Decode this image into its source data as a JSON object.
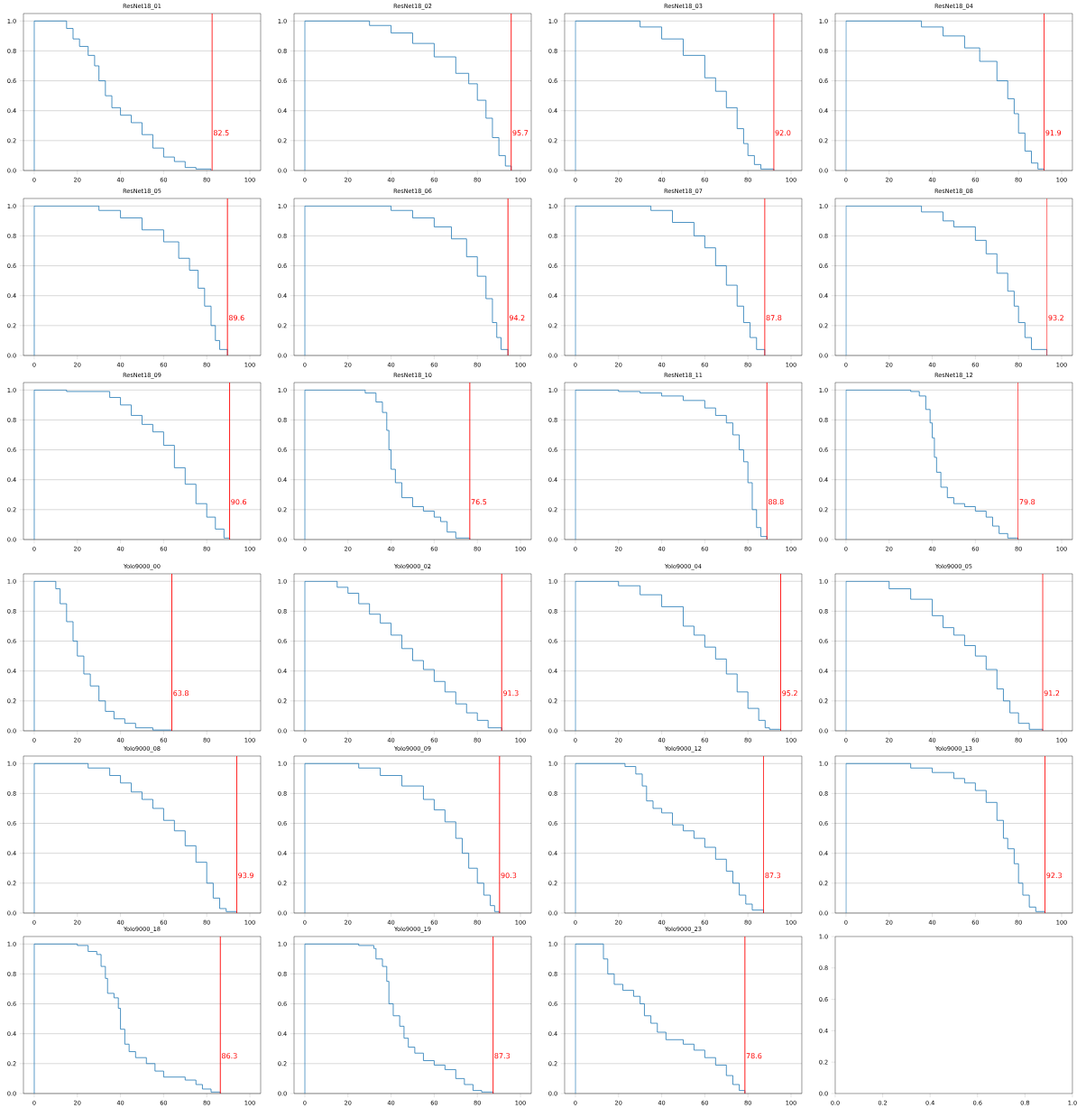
{
  "chart_data": [
    {
      "type": "step",
      "title": "ResNet18_01",
      "xlim": [
        -5,
        105
      ],
      "ylim": [
        0,
        1.05
      ],
      "xticks": [
        0,
        20,
        40,
        60,
        80,
        100
      ],
      "yticks": [
        {
          "value": 0,
          "label": "0.0"
        },
        {
          "value": 0.2,
          "label": "0.2"
        },
        {
          "value": 0.4,
          "label": "0.4"
        },
        {
          "value": 0.6,
          "label": "0.6"
        },
        {
          "value": 0.8,
          "label": "0.8"
        },
        {
          "value": 1,
          "label": "1.0"
        }
      ],
      "grid": "y",
      "series": [
        {
          "color": "#1f77b4",
          "x": [
            0,
            0,
            13,
            15,
            18,
            21,
            25,
            28,
            30,
            33,
            36,
            40,
            45,
            50,
            55,
            60,
            65,
            70,
            75,
            82
          ],
          "values": [
            0,
            1,
            1,
            0.95,
            0.88,
            0.83,
            0.77,
            0.7,
            0.6,
            0.5,
            0.42,
            0.37,
            0.32,
            0.24,
            0.15,
            0.09,
            0.06,
            0.02,
            0.01,
            0
          ]
        }
      ],
      "ref_lines": [
        {
          "axis": "x",
          "value": 82.5,
          "label": "82.5",
          "color": "#ff0000"
        }
      ]
    },
    {
      "type": "step",
      "title": "ResNet18_02",
      "xlim": [
        -5,
        105
      ],
      "ylim": [
        0,
        1.05
      ],
      "xticks": [
        0,
        20,
        40,
        60,
        80,
        100
      ],
      "yticks": [
        {
          "value": 0,
          "label": "0.0"
        },
        {
          "value": 0.2,
          "label": "0.2"
        },
        {
          "value": 0.4,
          "label": "0.4"
        },
        {
          "value": 0.6,
          "label": "0.6"
        },
        {
          "value": 0.8,
          "label": "0.8"
        },
        {
          "value": 1,
          "label": "1.0"
        }
      ],
      "grid": "y",
      "series": [
        {
          "color": "#1f77b4",
          "x": [
            0,
            0,
            22,
            30,
            40,
            50,
            60,
            70,
            76,
            80,
            84,
            87,
            90,
            93,
            95.7
          ],
          "values": [
            0,
            1,
            1,
            0.97,
            0.92,
            0.85,
            0.76,
            0.65,
            0.58,
            0.47,
            0.35,
            0.22,
            0.1,
            0.03,
            0
          ]
        }
      ],
      "ref_lines": [
        {
          "axis": "x",
          "value": 95.7,
          "label": "95.7",
          "color": "#ff0000"
        }
      ]
    },
    {
      "type": "step",
      "title": "ResNet18_03",
      "xlim": [
        -5,
        105
      ],
      "ylim": [
        0,
        1.05
      ],
      "xticks": [
        0,
        20,
        40,
        60,
        80,
        100
      ],
      "yticks": [
        {
          "value": 0,
          "label": "0.0"
        },
        {
          "value": 0.2,
          "label": "0.2"
        },
        {
          "value": 0.4,
          "label": "0.4"
        },
        {
          "value": 0.6,
          "label": "0.6"
        },
        {
          "value": 0.8,
          "label": "0.8"
        },
        {
          "value": 1,
          "label": "1.0"
        }
      ],
      "grid": "y",
      "series": [
        {
          "color": "#1f77b4",
          "x": [
            0,
            0,
            20,
            30,
            40,
            50,
            60,
            65,
            70,
            75,
            78,
            80,
            83,
            86,
            92
          ],
          "values": [
            0,
            1,
            1,
            0.96,
            0.88,
            0.77,
            0.62,
            0.53,
            0.42,
            0.28,
            0.18,
            0.1,
            0.04,
            0.01,
            0
          ]
        }
      ],
      "ref_lines": [
        {
          "axis": "x",
          "value": 92.0,
          "label": "92.0",
          "color": "#ff0000"
        }
      ]
    },
    {
      "type": "step",
      "title": "ResNet18_04",
      "xlim": [
        -5,
        105
      ],
      "ylim": [
        0,
        1.05
      ],
      "xticks": [
        0,
        20,
        40,
        60,
        80,
        100
      ],
      "yticks": [
        {
          "value": 0,
          "label": "0.0"
        },
        {
          "value": 0.2,
          "label": "0.2"
        },
        {
          "value": 0.4,
          "label": "0.4"
        },
        {
          "value": 0.6,
          "label": "0.6"
        },
        {
          "value": 0.8,
          "label": "0.8"
        },
        {
          "value": 1,
          "label": "1.0"
        }
      ],
      "grid": "y",
      "series": [
        {
          "color": "#1f77b4",
          "x": [
            0,
            0,
            25,
            35,
            45,
            55,
            62,
            70,
            75,
            78,
            80,
            83,
            86,
            89,
            91.9
          ],
          "values": [
            0,
            1,
            1,
            0.96,
            0.9,
            0.82,
            0.73,
            0.6,
            0.48,
            0.38,
            0.25,
            0.13,
            0.05,
            0.01,
            0
          ]
        }
      ],
      "ref_lines": [
        {
          "axis": "x",
          "value": 91.9,
          "label": "91.9",
          "color": "#ff0000"
        }
      ]
    },
    {
      "type": "step",
      "title": "ResNet18_05",
      "xlim": [
        -5,
        105
      ],
      "ylim": [
        0,
        1.05
      ],
      "xticks": [
        0,
        20,
        40,
        60,
        80,
        100
      ],
      "yticks": [
        {
          "value": 0,
          "label": "0.0"
        },
        {
          "value": 0.2,
          "label": "0.2"
        },
        {
          "value": 0.4,
          "label": "0.4"
        },
        {
          "value": 0.6,
          "label": "0.6"
        },
        {
          "value": 0.8,
          "label": "0.8"
        },
        {
          "value": 1,
          "label": "1.0"
        }
      ],
      "grid": "y",
      "series": [
        {
          "color": "#1f77b4",
          "x": [
            0,
            0,
            22,
            30,
            40,
            50,
            60,
            67,
            72,
            76,
            79,
            82,
            84,
            86,
            89.6
          ],
          "values": [
            0,
            1,
            1,
            0.97,
            0.92,
            0.84,
            0.76,
            0.65,
            0.57,
            0.45,
            0.33,
            0.2,
            0.1,
            0.04,
            0
          ]
        }
      ],
      "ref_lines": [
        {
          "axis": "x",
          "value": 89.6,
          "label": "89.6",
          "color": "#ff0000"
        }
      ]
    },
    {
      "type": "step",
      "title": "ResNet18_06",
      "xlim": [
        -5,
        105
      ],
      "ylim": [
        0,
        1.05
      ],
      "xticks": [
        0,
        20,
        40,
        60,
        80,
        100
      ],
      "yticks": [
        {
          "value": 0,
          "label": "0.0"
        },
        {
          "value": 0.2,
          "label": "0.2"
        },
        {
          "value": 0.4,
          "label": "0.4"
        },
        {
          "value": 0.6,
          "label": "0.6"
        },
        {
          "value": 0.8,
          "label": "0.8"
        },
        {
          "value": 1,
          "label": "1.0"
        }
      ],
      "grid": "y",
      "series": [
        {
          "color": "#1f77b4",
          "x": [
            0,
            0,
            25,
            40,
            50,
            60,
            68,
            75,
            80,
            84,
            87,
            89,
            91,
            94.2
          ],
          "values": [
            0,
            1,
            1,
            0.97,
            0.92,
            0.86,
            0.78,
            0.66,
            0.53,
            0.38,
            0.22,
            0.12,
            0.04,
            0
          ]
        }
      ],
      "ref_lines": [
        {
          "axis": "x",
          "value": 94.2,
          "label": "94.2",
          "color": "#ff0000"
        }
      ]
    },
    {
      "type": "step",
      "title": "ResNet18_07",
      "xlim": [
        -5,
        105
      ],
      "ylim": [
        0,
        1.05
      ],
      "xticks": [
        0,
        20,
        40,
        60,
        80,
        100
      ],
      "yticks": [
        {
          "value": 0,
          "label": "0.0"
        },
        {
          "value": 0.2,
          "label": "0.2"
        },
        {
          "value": 0.4,
          "label": "0.4"
        },
        {
          "value": 0.6,
          "label": "0.6"
        },
        {
          "value": 0.8,
          "label": "0.8"
        },
        {
          "value": 1,
          "label": "1.0"
        }
      ],
      "grid": "y",
      "series": [
        {
          "color": "#1f77b4",
          "x": [
            0,
            0,
            25,
            35,
            45,
            55,
            60,
            65,
            70,
            75,
            78,
            81,
            84,
            87.8
          ],
          "values": [
            0,
            1,
            1,
            0.97,
            0.89,
            0.8,
            0.72,
            0.6,
            0.47,
            0.33,
            0.22,
            0.12,
            0.04,
            0
          ]
        }
      ],
      "ref_lines": [
        {
          "axis": "x",
          "value": 87.8,
          "label": "87.8",
          "color": "#ff0000"
        }
      ]
    },
    {
      "type": "step",
      "title": "ResNet18_08",
      "xlim": [
        -5,
        105
      ],
      "ylim": [
        0,
        1.05
      ],
      "xticks": [
        0,
        20,
        40,
        60,
        80,
        100
      ],
      "yticks": [
        {
          "value": 0,
          "label": "0.0"
        },
        {
          "value": 0.2,
          "label": "0.2"
        },
        {
          "value": 0.4,
          "label": "0.4"
        },
        {
          "value": 0.6,
          "label": "0.6"
        },
        {
          "value": 0.8,
          "label": "0.8"
        },
        {
          "value": 1,
          "label": "1.0"
        }
      ],
      "grid": "y",
      "series": [
        {
          "color": "#1f77b4",
          "x": [
            0,
            0,
            20,
            35,
            45,
            50,
            60,
            65,
            70,
            75,
            78,
            80,
            83,
            86,
            93.2
          ],
          "values": [
            0,
            1,
            1,
            0.96,
            0.9,
            0.86,
            0.77,
            0.68,
            0.55,
            0.43,
            0.33,
            0.22,
            0.12,
            0.04,
            0
          ]
        }
      ],
      "ref_lines": [
        {
          "axis": "x",
          "value": 93.2,
          "label": "93.2",
          "color": "#ff0000"
        }
      ]
    },
    {
      "type": "step",
      "title": "ResNet18_09",
      "xlim": [
        -5,
        105
      ],
      "ylim": [
        0,
        1.05
      ],
      "xticks": [
        0,
        20,
        40,
        60,
        80,
        100
      ],
      "yticks": [
        {
          "value": 0,
          "label": "0.0"
        },
        {
          "value": 0.2,
          "label": "0.2"
        },
        {
          "value": 0.4,
          "label": "0.4"
        },
        {
          "value": 0.6,
          "label": "0.6"
        },
        {
          "value": 0.8,
          "label": "0.8"
        },
        {
          "value": 1,
          "label": "1.0"
        }
      ],
      "grid": "y",
      "series": [
        {
          "color": "#1f77b4",
          "x": [
            0,
            0,
            12,
            15,
            35,
            40,
            45,
            50,
            55,
            60,
            65,
            70,
            75,
            80,
            84,
            88,
            90.6
          ],
          "values": [
            0,
            1,
            1,
            0.99,
            0.95,
            0.9,
            0.83,
            0.77,
            0.72,
            0.63,
            0.48,
            0.37,
            0.24,
            0.15,
            0.07,
            0.01,
            0
          ]
        }
      ],
      "ref_lines": [
        {
          "axis": "x",
          "value": 90.6,
          "label": "90.6",
          "color": "#ff0000"
        }
      ]
    },
    {
      "type": "step",
      "title": "ResNet18_10",
      "xlim": [
        -5,
        105
      ],
      "ylim": [
        0,
        1.05
      ],
      "xticks": [
        0,
        20,
        40,
        60,
        80,
        100
      ],
      "yticks": [
        {
          "value": 0,
          "label": "0.0"
        },
        {
          "value": 0.2,
          "label": "0.2"
        },
        {
          "value": 0.4,
          "label": "0.4"
        },
        {
          "value": 0.6,
          "label": "0.6"
        },
        {
          "value": 0.8,
          "label": "0.8"
        },
        {
          "value": 1,
          "label": "1.0"
        }
      ],
      "grid": "y",
      "series": [
        {
          "color": "#1f77b4",
          "x": [
            0,
            0,
            20,
            28,
            33,
            36,
            38,
            39,
            40,
            42,
            45,
            50,
            55,
            60,
            63,
            66,
            70,
            76.5
          ],
          "values": [
            0,
            1,
            1,
            0.98,
            0.92,
            0.85,
            0.73,
            0.6,
            0.47,
            0.38,
            0.28,
            0.22,
            0.19,
            0.15,
            0.12,
            0.05,
            0.01,
            0
          ]
        }
      ],
      "ref_lines": [
        {
          "axis": "x",
          "value": 76.5,
          "label": "76.5",
          "color": "#ff0000"
        }
      ]
    },
    {
      "type": "step",
      "title": "ResNet18_11",
      "xlim": [
        -5,
        105
      ],
      "ylim": [
        0,
        1.05
      ],
      "xticks": [
        0,
        20,
        40,
        60,
        80,
        100
      ],
      "yticks": [
        {
          "value": 0,
          "label": "0.0"
        },
        {
          "value": 0.2,
          "label": "0.2"
        },
        {
          "value": 0.4,
          "label": "0.4"
        },
        {
          "value": 0.6,
          "label": "0.6"
        },
        {
          "value": 0.8,
          "label": "0.8"
        },
        {
          "value": 1,
          "label": "1.0"
        }
      ],
      "grid": "y",
      "series": [
        {
          "color": "#1f77b4",
          "x": [
            0,
            0,
            10,
            20,
            30,
            40,
            50,
            60,
            65,
            70,
            73,
            76,
            78,
            80,
            82,
            84,
            86,
            88.8
          ],
          "values": [
            0,
            1,
            1,
            0.99,
            0.98,
            0.96,
            0.93,
            0.88,
            0.83,
            0.78,
            0.7,
            0.6,
            0.52,
            0.38,
            0.2,
            0.08,
            0.02,
            0
          ]
        }
      ],
      "ref_lines": [
        {
          "axis": "x",
          "value": 88.8,
          "label": "88.8",
          "color": "#ff0000"
        }
      ]
    },
    {
      "type": "step",
      "title": "ResNet18_12",
      "xlim": [
        -5,
        105
      ],
      "ylim": [
        0,
        1.05
      ],
      "xticks": [
        0,
        20,
        40,
        60,
        80,
        100
      ],
      "yticks": [
        {
          "value": 0,
          "label": "0.0"
        },
        {
          "value": 0.2,
          "label": "0.2"
        },
        {
          "value": 0.4,
          "label": "0.4"
        },
        {
          "value": 0.6,
          "label": "0.6"
        },
        {
          "value": 0.8,
          "label": "0.8"
        },
        {
          "value": 1,
          "label": "1.0"
        }
      ],
      "grid": "y",
      "series": [
        {
          "color": "#1f77b4",
          "x": [
            0,
            0,
            10,
            30,
            34,
            37,
            39,
            40,
            41,
            42,
            44,
            47,
            50,
            55,
            60,
            65,
            68,
            71,
            75,
            79.8
          ],
          "values": [
            0,
            1,
            1,
            0.99,
            0.96,
            0.87,
            0.78,
            0.68,
            0.55,
            0.45,
            0.35,
            0.28,
            0.24,
            0.22,
            0.19,
            0.15,
            0.09,
            0.04,
            0.01,
            0
          ]
        }
      ],
      "ref_lines": [
        {
          "axis": "x",
          "value": 79.8,
          "label": "79.8",
          "color": "#ff0000"
        }
      ]
    },
    {
      "type": "step",
      "title": "Yolo9000_00",
      "xlim": [
        -5,
        105
      ],
      "ylim": [
        0,
        1.05
      ],
      "xticks": [
        0,
        20,
        40,
        60,
        80,
        100
      ],
      "yticks": [
        {
          "value": 0,
          "label": "0.0"
        },
        {
          "value": 0.2,
          "label": "0.2"
        },
        {
          "value": 0.4,
          "label": "0.4"
        },
        {
          "value": 0.6,
          "label": "0.6"
        },
        {
          "value": 0.8,
          "label": "0.8"
        },
        {
          "value": 1,
          "label": "1.0"
        }
      ],
      "grid": "y",
      "series": [
        {
          "color": "#1f77b4",
          "x": [
            0,
            0,
            8,
            10,
            12,
            15,
            18,
            20,
            23,
            26,
            30,
            33,
            37,
            42,
            47,
            55,
            63.8
          ],
          "values": [
            0,
            1,
            1,
            0.95,
            0.85,
            0.73,
            0.6,
            0.5,
            0.38,
            0.3,
            0.2,
            0.13,
            0.08,
            0.05,
            0.02,
            0.005,
            0
          ]
        }
      ],
      "ref_lines": [
        {
          "axis": "x",
          "value": 63.8,
          "label": "63.8",
          "color": "#ff0000"
        }
      ]
    },
    {
      "type": "step",
      "title": "Yolo9000_02",
      "xlim": [
        -5,
        105
      ],
      "ylim": [
        0,
        1.05
      ],
      "xticks": [
        0,
        20,
        40,
        60,
        80,
        100
      ],
      "yticks": [
        {
          "value": 0,
          "label": "0.0"
        },
        {
          "value": 0.2,
          "label": "0.2"
        },
        {
          "value": 0.4,
          "label": "0.4"
        },
        {
          "value": 0.6,
          "label": "0.6"
        },
        {
          "value": 0.8,
          "label": "0.8"
        },
        {
          "value": 1,
          "label": "1.0"
        }
      ],
      "grid": "y",
      "series": [
        {
          "color": "#1f77b4",
          "x": [
            0,
            0,
            8,
            15,
            20,
            25,
            30,
            35,
            40,
            45,
            50,
            55,
            60,
            65,
            70,
            75,
            80,
            85,
            91.3
          ],
          "values": [
            0,
            1,
            1,
            0.96,
            0.92,
            0.85,
            0.78,
            0.72,
            0.64,
            0.55,
            0.47,
            0.41,
            0.33,
            0.26,
            0.18,
            0.12,
            0.07,
            0.02,
            0
          ]
        }
      ],
      "ref_lines": [
        {
          "axis": "x",
          "value": 91.3,
          "label": "91.3",
          "color": "#ff0000"
        }
      ]
    },
    {
      "type": "step",
      "title": "Yolo9000_04",
      "xlim": [
        -5,
        105
      ],
      "ylim": [
        0,
        1.05
      ],
      "xticks": [
        0,
        20,
        40,
        60,
        80,
        100
      ],
      "yticks": [
        {
          "value": 0,
          "label": "0.0"
        },
        {
          "value": 0.2,
          "label": "0.2"
        },
        {
          "value": 0.4,
          "label": "0.4"
        },
        {
          "value": 0.6,
          "label": "0.6"
        },
        {
          "value": 0.8,
          "label": "0.8"
        },
        {
          "value": 1,
          "label": "1.0"
        }
      ],
      "grid": "y",
      "series": [
        {
          "color": "#1f77b4",
          "x": [
            0,
            0,
            10,
            20,
            30,
            40,
            50,
            55,
            60,
            65,
            70,
            75,
            80,
            85,
            88,
            90,
            95.2
          ],
          "values": [
            0,
            1,
            1,
            0.97,
            0.91,
            0.83,
            0.7,
            0.64,
            0.56,
            0.48,
            0.38,
            0.26,
            0.15,
            0.07,
            0.02,
            0.01,
            0
          ]
        }
      ],
      "ref_lines": [
        {
          "axis": "x",
          "value": 95.2,
          "label": "95.2",
          "color": "#ff0000"
        }
      ]
    },
    {
      "type": "step",
      "title": "Yolo9000_05",
      "xlim": [
        -5,
        105
      ],
      "ylim": [
        0,
        1.05
      ],
      "xticks": [
        0,
        20,
        40,
        60,
        80,
        100
      ],
      "yticks": [
        {
          "value": 0,
          "label": "0.0"
        },
        {
          "value": 0.2,
          "label": "0.2"
        },
        {
          "value": 0.4,
          "label": "0.4"
        },
        {
          "value": 0.6,
          "label": "0.6"
        },
        {
          "value": 0.8,
          "label": "0.8"
        },
        {
          "value": 1,
          "label": "1.0"
        }
      ],
      "grid": "y",
      "series": [
        {
          "color": "#1f77b4",
          "x": [
            0,
            0,
            10,
            20,
            30,
            40,
            45,
            50,
            55,
            60,
            65,
            70,
            73,
            76,
            80,
            85,
            91.2
          ],
          "values": [
            0,
            1,
            1,
            0.95,
            0.88,
            0.77,
            0.69,
            0.64,
            0.57,
            0.5,
            0.41,
            0.28,
            0.2,
            0.12,
            0.05,
            0.01,
            0
          ]
        }
      ],
      "ref_lines": [
        {
          "axis": "x",
          "value": 91.2,
          "label": "91.2",
          "color": "#ff0000"
        }
      ]
    },
    {
      "type": "step",
      "title": "Yolo9000_08",
      "xlim": [
        -5,
        105
      ],
      "ylim": [
        0,
        1.05
      ],
      "xticks": [
        0,
        20,
        40,
        60,
        80,
        100
      ],
      "yticks": [
        {
          "value": 0,
          "label": "0.0"
        },
        {
          "value": 0.2,
          "label": "0.2"
        },
        {
          "value": 0.4,
          "label": "0.4"
        },
        {
          "value": 0.6,
          "label": "0.6"
        },
        {
          "value": 0.8,
          "label": "0.8"
        },
        {
          "value": 1,
          "label": "1.0"
        }
      ],
      "grid": "y",
      "series": [
        {
          "color": "#1f77b4",
          "x": [
            0,
            0,
            15,
            25,
            35,
            40,
            45,
            50,
            55,
            60,
            65,
            70,
            75,
            80,
            83,
            86,
            89,
            93.9
          ],
          "values": [
            0,
            1,
            1,
            0.97,
            0.92,
            0.87,
            0.81,
            0.76,
            0.7,
            0.62,
            0.55,
            0.45,
            0.34,
            0.2,
            0.1,
            0.03,
            0.01,
            0
          ]
        }
      ],
      "ref_lines": [
        {
          "axis": "x",
          "value": 93.9,
          "label": "93.9",
          "color": "#ff0000"
        }
      ]
    },
    {
      "type": "step",
      "title": "Yolo9000_09",
      "xlim": [
        -5,
        105
      ],
      "ylim": [
        0,
        1.05
      ],
      "xticks": [
        0,
        20,
        40,
        60,
        80,
        100
      ],
      "yticks": [
        {
          "value": 0,
          "label": "0.0"
        },
        {
          "value": 0.2,
          "label": "0.2"
        },
        {
          "value": 0.4,
          "label": "0.4"
        },
        {
          "value": 0.6,
          "label": "0.6"
        },
        {
          "value": 0.8,
          "label": "0.8"
        },
        {
          "value": 1,
          "label": "1.0"
        }
      ],
      "grid": "y",
      "series": [
        {
          "color": "#1f77b4",
          "x": [
            0,
            0,
            15,
            25,
            35,
            45,
            55,
            60,
            65,
            70,
            73,
            76,
            80,
            83,
            86,
            88,
            90.3
          ],
          "values": [
            0,
            1,
            1,
            0.97,
            0.92,
            0.85,
            0.76,
            0.69,
            0.61,
            0.5,
            0.4,
            0.3,
            0.2,
            0.12,
            0.05,
            0.01,
            0
          ]
        }
      ],
      "ref_lines": [
        {
          "axis": "x",
          "value": 90.3,
          "label": "90.3",
          "color": "#ff0000"
        }
      ]
    },
    {
      "type": "step",
      "title": "Yolo9000_12",
      "xlim": [
        -5,
        105
      ],
      "ylim": [
        0,
        1.05
      ],
      "xticks": [
        0,
        20,
        40,
        60,
        80,
        100
      ],
      "yticks": [
        {
          "value": 0,
          "label": "0.0"
        },
        {
          "value": 0.2,
          "label": "0.2"
        },
        {
          "value": 0.4,
          "label": "0.4"
        },
        {
          "value": 0.6,
          "label": "0.6"
        },
        {
          "value": 0.8,
          "label": "0.8"
        },
        {
          "value": 1,
          "label": "1.0"
        }
      ],
      "grid": "y",
      "series": [
        {
          "color": "#1f77b4",
          "x": [
            0,
            0,
            18,
            23,
            28,
            31,
            33,
            36,
            40,
            45,
            50,
            55,
            60,
            65,
            70,
            73,
            76,
            79,
            82,
            87.3
          ],
          "values": [
            0,
            1,
            1,
            0.98,
            0.93,
            0.85,
            0.75,
            0.7,
            0.67,
            0.59,
            0.55,
            0.5,
            0.44,
            0.36,
            0.28,
            0.2,
            0.12,
            0.06,
            0.02,
            0
          ]
        }
      ],
      "ref_lines": [
        {
          "axis": "x",
          "value": 87.3,
          "label": "87.3",
          "color": "#ff0000"
        }
      ]
    },
    {
      "type": "step",
      "title": "Yolo9000_13",
      "xlim": [
        -5,
        105
      ],
      "ylim": [
        0,
        1.05
      ],
      "xticks": [
        0,
        20,
        40,
        60,
        80,
        100
      ],
      "yticks": [
        {
          "value": 0,
          "label": "0.0"
        },
        {
          "value": 0.2,
          "label": "0.2"
        },
        {
          "value": 0.4,
          "label": "0.4"
        },
        {
          "value": 0.6,
          "label": "0.6"
        },
        {
          "value": 0.8,
          "label": "0.8"
        },
        {
          "value": 1,
          "label": "1.0"
        }
      ],
      "grid": "y",
      "series": [
        {
          "color": "#1f77b4",
          "x": [
            0,
            0,
            20,
            30,
            40,
            50,
            55,
            60,
            65,
            70,
            73,
            75,
            78,
            80,
            82,
            85,
            88,
            92.3
          ],
          "values": [
            0,
            1,
            1,
            0.97,
            0.94,
            0.9,
            0.87,
            0.82,
            0.74,
            0.62,
            0.5,
            0.43,
            0.33,
            0.2,
            0.12,
            0.04,
            0.01,
            0
          ]
        }
      ],
      "ref_lines": [
        {
          "axis": "x",
          "value": 92.3,
          "label": "92.3",
          "color": "#ff0000"
        }
      ]
    },
    {
      "type": "step",
      "title": "Yolo9000_18",
      "xlim": [
        -5,
        105
      ],
      "ylim": [
        0,
        1.05
      ],
      "xticks": [
        0,
        20,
        40,
        60,
        80,
        100
      ],
      "yticks": [
        {
          "value": 0,
          "label": "0.0"
        },
        {
          "value": 0.2,
          "label": "0.2"
        },
        {
          "value": 0.4,
          "label": "0.4"
        },
        {
          "value": 0.6,
          "label": "0.6"
        },
        {
          "value": 0.8,
          "label": "0.8"
        },
        {
          "value": 1,
          "label": "1.0"
        }
      ],
      "grid": "y",
      "series": [
        {
          "color": "#1f77b4",
          "x": [
            0,
            0,
            20,
            25,
            29,
            31,
            33,
            34,
            37,
            39,
            40,
            42,
            44,
            47,
            52,
            56,
            60,
            70,
            75,
            78,
            82,
            86.3
          ],
          "values": [
            0,
            1,
            0.99,
            0.95,
            0.93,
            0.85,
            0.77,
            0.67,
            0.64,
            0.57,
            0.43,
            0.33,
            0.28,
            0.24,
            0.2,
            0.15,
            0.11,
            0.09,
            0.06,
            0.03,
            0.01,
            0
          ]
        }
      ],
      "ref_lines": [
        {
          "axis": "x",
          "value": 86.3,
          "label": "86.3",
          "color": "#ff0000"
        }
      ]
    },
    {
      "type": "step",
      "title": "Yolo9000_19",
      "xlim": [
        -5,
        105
      ],
      "ylim": [
        0,
        1.05
      ],
      "xticks": [
        0,
        20,
        40,
        60,
        80,
        100
      ],
      "yticks": [
        {
          "value": 0,
          "label": "0.0"
        },
        {
          "value": 0.2,
          "label": "0.2"
        },
        {
          "value": 0.4,
          "label": "0.4"
        },
        {
          "value": 0.6,
          "label": "0.6"
        },
        {
          "value": 0.8,
          "label": "0.8"
        },
        {
          "value": 1,
          "label": "1.0"
        }
      ],
      "grid": "y",
      "series": [
        {
          "color": "#1f77b4",
          "x": [
            0,
            0,
            25,
            32,
            33,
            36,
            38,
            39,
            41,
            44,
            46,
            48,
            51,
            55,
            60,
            65,
            70,
            74,
            78,
            82,
            87.3
          ],
          "values": [
            0,
            1,
            0.99,
            0.97,
            0.9,
            0.85,
            0.75,
            0.6,
            0.52,
            0.45,
            0.37,
            0.31,
            0.27,
            0.22,
            0.19,
            0.16,
            0.1,
            0.06,
            0.02,
            0.01,
            0
          ]
        }
      ],
      "ref_lines": [
        {
          "axis": "x",
          "value": 87.3,
          "label": "87.3",
          "color": "#ff0000"
        }
      ]
    },
    {
      "type": "step",
      "title": "Yolo9000_23",
      "xlim": [
        -5,
        105
      ],
      "ylim": [
        0,
        1.05
      ],
      "xticks": [
        0,
        20,
        40,
        60,
        80,
        100
      ],
      "yticks": [
        {
          "value": 0,
          "label": "0.0"
        },
        {
          "value": 0.2,
          "label": "0.2"
        },
        {
          "value": 0.4,
          "label": "0.4"
        },
        {
          "value": 0.6,
          "label": "0.6"
        },
        {
          "value": 0.8,
          "label": "0.8"
        },
        {
          "value": 1,
          "label": "1.0"
        }
      ],
      "grid": "y",
      "series": [
        {
          "color": "#1f77b4",
          "x": [
            0,
            0,
            12,
            13,
            15,
            18,
            22,
            27,
            30,
            32,
            35,
            38,
            42,
            50,
            55,
            60,
            65,
            70,
            73,
            76,
            78.6
          ],
          "values": [
            0,
            1,
            1,
            0.9,
            0.8,
            0.73,
            0.69,
            0.65,
            0.6,
            0.52,
            0.47,
            0.41,
            0.36,
            0.33,
            0.29,
            0.24,
            0.19,
            0.12,
            0.06,
            0.02,
            0
          ]
        }
      ],
      "ref_lines": [
        {
          "axis": "x",
          "value": 78.6,
          "label": "78.6",
          "color": "#ff0000"
        }
      ]
    },
    {
      "type": "line",
      "xlim": [
        0,
        1
      ],
      "ylim": [
        0,
        1
      ],
      "xticks": [
        {
          "value": 0,
          "label": "0.0"
        },
        {
          "value": 0.2,
          "label": "0.2"
        },
        {
          "value": 0.4,
          "label": "0.4"
        },
        {
          "value": 0.6,
          "label": "0.6"
        },
        {
          "value": 0.8,
          "label": "0.8"
        },
        {
          "value": 1,
          "label": "1.0"
        }
      ],
      "yticks": [
        {
          "value": 0,
          "label": "0.0"
        },
        {
          "value": 0.2,
          "label": "0.2"
        },
        {
          "value": 0.4,
          "label": "0.4"
        },
        {
          "value": 0.6,
          "label": "0.6"
        },
        {
          "value": 0.8,
          "label": "0.8"
        },
        {
          "value": 1,
          "label": "1.0"
        }
      ]
    }
  ]
}
